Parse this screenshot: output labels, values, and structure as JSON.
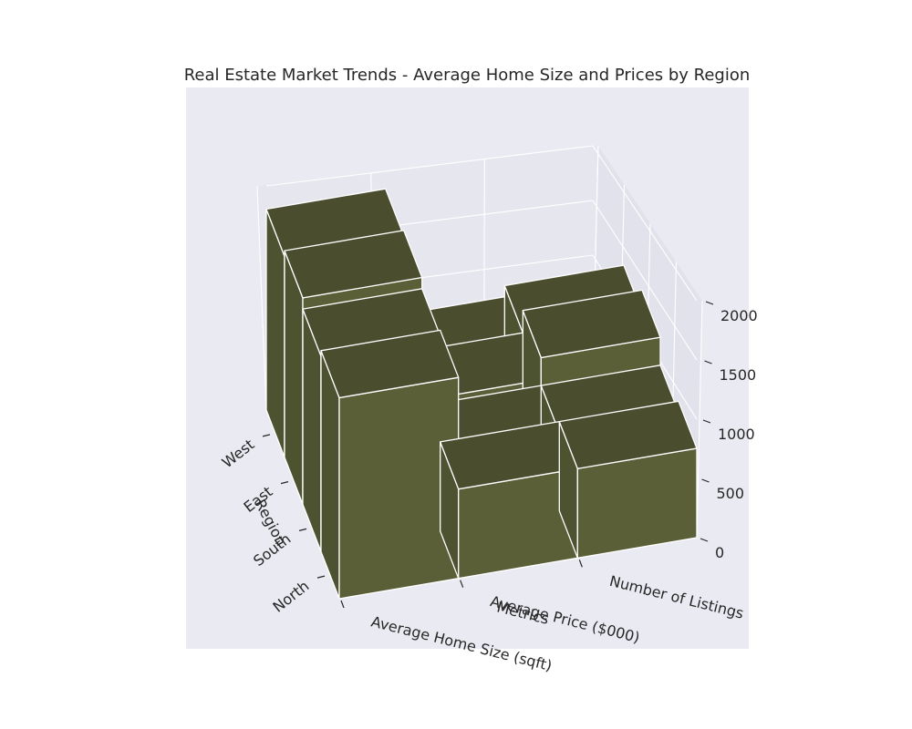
{
  "chart_data": {
    "type": "bar3d",
    "title": "Real Estate Market Trends - Average Home Size and Prices by Region",
    "xlabel": "Metrics",
    "ylabel": "Region",
    "zlabel": "",
    "categories": [
      "Average Home Size (sqft)",
      "Average Price ($000)",
      "Number of Listings"
    ],
    "regions": [
      "North",
      "South",
      "East",
      "West"
    ],
    "series": [
      {
        "name": "North",
        "values": [
          1800,
          800,
          800
        ]
      },
      {
        "name": "South",
        "values": [
          1750,
          700,
          700
        ]
      },
      {
        "name": "East",
        "values": [
          1850,
          750,
          950
        ]
      },
      {
        "name": "West",
        "values": [
          1800,
          650,
          750
        ]
      }
    ],
    "zticks": [
      0,
      500,
      1000,
      1500,
      2000
    ],
    "zlim": [
      0,
      2000
    ],
    "grid": true,
    "colors": {
      "pane": "#eaeaf2",
      "bar_front": "#5b5f38",
      "bar_side": "#4d5230",
      "bar_top": "#4a4e2f",
      "grid": "#ffffff",
      "text": "#262626"
    }
  }
}
